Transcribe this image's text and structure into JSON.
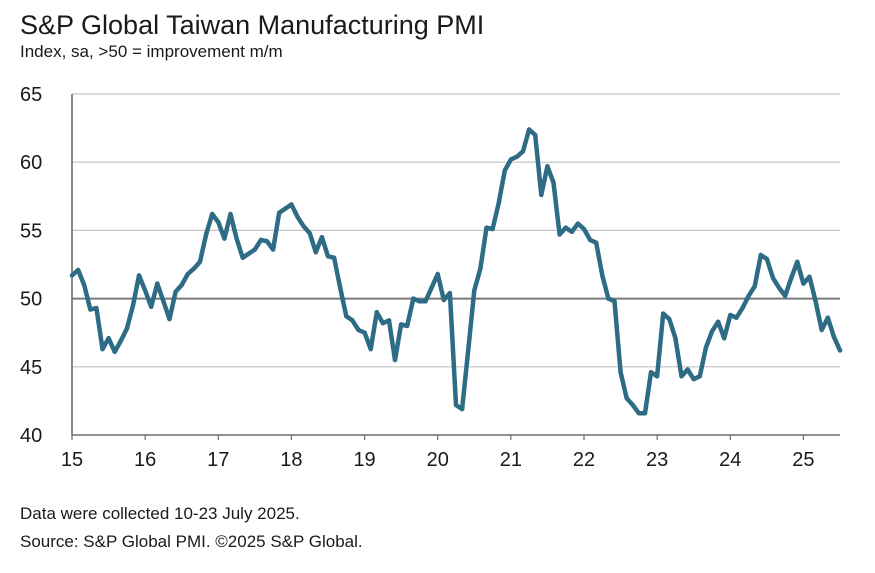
{
  "chart_data": {
    "type": "line",
    "title": "S&P Global Taiwan Manufacturing PMI",
    "subtitle": "Index, sa, >50 = improvement m/m",
    "xlabel": "",
    "ylabel": "",
    "ylim": [
      40,
      65
    ],
    "yticks": [
      40,
      45,
      50,
      55,
      60,
      65
    ],
    "xlim": [
      2015,
      2025.5
    ],
    "xticks": [
      {
        "value": 2015,
        "label": "15"
      },
      {
        "value": 2016,
        "label": "16"
      },
      {
        "value": 2017,
        "label": "17"
      },
      {
        "value": 2018,
        "label": "18"
      },
      {
        "value": 2019,
        "label": "19"
      },
      {
        "value": 2020,
        "label": "20"
      },
      {
        "value": 2021,
        "label": "21"
      },
      {
        "value": 2022,
        "label": "22"
      },
      {
        "value": 2023,
        "label": "23"
      },
      {
        "value": 2024,
        "label": "24"
      },
      {
        "value": 2025,
        "label": "25"
      }
    ],
    "reference_line": 50,
    "grid": "horizontal",
    "line_color": "#2e6b85",
    "series": [
      {
        "name": "Taiwan Manufacturing PMI",
        "start_year": 2015,
        "start_month": 1,
        "values": [
          51.7,
          52.1,
          51.0,
          49.2,
          49.3,
          46.3,
          47.1,
          46.1,
          46.9,
          47.8,
          49.5,
          51.7,
          50.6,
          49.4,
          51.1,
          49.8,
          48.5,
          50.5,
          51.0,
          51.8,
          52.2,
          52.7,
          54.7,
          56.2,
          55.6,
          54.4,
          56.2,
          54.4,
          53.0,
          53.3,
          53.6,
          54.3,
          54.2,
          53.6,
          56.3,
          56.6,
          56.9,
          56.0,
          55.3,
          54.8,
          53.4,
          54.5,
          53.1,
          53.0,
          50.8,
          48.7,
          48.4,
          47.7,
          47.5,
          46.3,
          49.0,
          48.2,
          48.4,
          45.5,
          48.1,
          48.0,
          50.0,
          49.8,
          49.8,
          50.8,
          51.8,
          49.9,
          50.4,
          42.2,
          41.9,
          46.2,
          50.6,
          52.2,
          55.2,
          55.1,
          57.0,
          59.4,
          60.2,
          60.4,
          60.8,
          62.4,
          62.0,
          57.6,
          59.7,
          58.5,
          54.7,
          55.2,
          54.9,
          55.5,
          55.1,
          54.3,
          54.1,
          51.7,
          50.0,
          49.8,
          44.6,
          42.7,
          42.2,
          41.6,
          41.6,
          44.6,
          44.3,
          48.9,
          48.5,
          47.1,
          44.3,
          44.8,
          44.1,
          44.3,
          46.4,
          47.6,
          48.3,
          47.1,
          48.8,
          48.6,
          49.3,
          50.2,
          50.9,
          53.2,
          52.9,
          51.5,
          50.8,
          50.2,
          51.5,
          52.7,
          51.1,
          51.6,
          49.8,
          47.7,
          48.6,
          47.2,
          46.2
        ]
      }
    ]
  },
  "footnotes": [
    "Data were collected 10-23 July 2025.",
    "Source: S&P Global PMI. ©2025 S&P Global."
  ]
}
